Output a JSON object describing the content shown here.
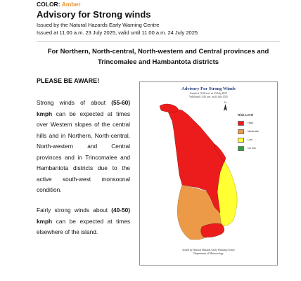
{
  "header": {
    "color_prefix": "COLOR: ",
    "color_value": "Amber",
    "title": "Advisory for Strong winds",
    "issued_by": "Issued by the Natural Hazards Early Warning Centre",
    "issued_at": "Issued at 11.00 a.m. 23 July 2025, valid until 11.00 a.m. 24 July 2025"
  },
  "region_line1": "For Northern, North-central, North-western and Central provinces and",
  "region_line2": "Trincomalee and Hambantota districts",
  "aware": "PLEASE BE AWARE!",
  "para1": {
    "part1": "Strong winds of about ",
    "speed": "(55-60) kmph",
    "part2": " can be expected at times over Western slopes of the central hills and in Northern, North-central, North-western and Central provinces and in Trincomalee and Hambantota districts due to the active south-west monsoonal condition."
  },
  "para2": {
    "part1": "Fairly strong winds about ",
    "speed": "(40-50) kmph",
    "part2": " can be expected at times elsewhere of the island."
  },
  "map": {
    "title": "Advisory For Strong Winds",
    "sub1": "Issued at 11.00 a.m. on 23 July 2025",
    "sub2": "Valid until 11.00 a.m. on 24 July 2025",
    "legend_title": "Risk Level",
    "legend": [
      {
        "label": "High",
        "color": "#ec1c1c"
      },
      {
        "label": "Moderate",
        "color": "#ec9a48"
      },
      {
        "label": "Low",
        "color": "#ffff33"
      },
      {
        "label": "No risk",
        "color": "#2e9e3b"
      }
    ],
    "north_label": "N",
    "footer1": "Issued by Natural Hazards Early Warning Centre",
    "footer2": "Department of Meteorology"
  }
}
